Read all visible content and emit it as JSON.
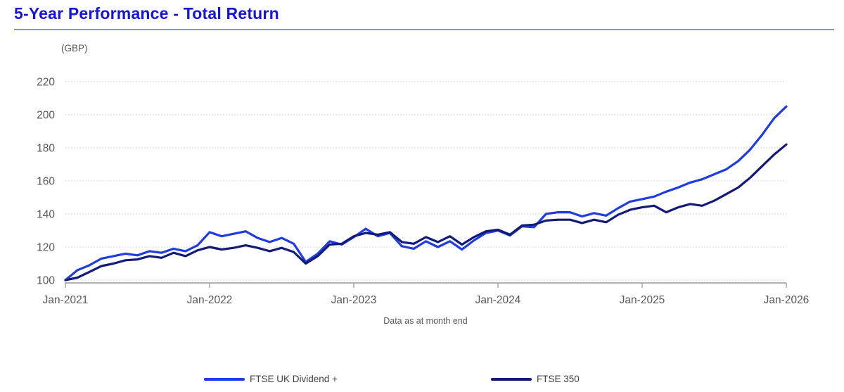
{
  "header": {
    "title": "5-Year Performance - Total Return"
  },
  "colors": {
    "title_blue": "#1414DC",
    "rule_blue": "#8C8CDC",
    "axis_gray": "#9A9A9A",
    "text_gray": "#595959",
    "grid_gray": "#C9C9C9",
    "legend_text": "#3F3F3F"
  },
  "chart_data": {
    "type": "line",
    "title": "5-Year Performance - Total Return",
    "unit_label": "(GBP)",
    "caption": "Data as at month end",
    "xlabel": "",
    "ylabel": "",
    "grid": true,
    "legend_position": "bottom",
    "x_axis": {
      "tick_labels": [
        "Jan-2021",
        "Jan-2022",
        "Jan-2023",
        "Jan-2024",
        "Jan-2025",
        "Jan-2026"
      ],
      "points": "monthly, month-end, Jan-2021 through Jan-2026"
    },
    "y_axis": {
      "ticks": [
        100,
        120,
        140,
        160,
        180,
        200,
        220
      ],
      "range": [
        100,
        220
      ]
    },
    "series": [
      {
        "name": "FTSE UK Dividend +",
        "color": "#1E3CE0",
        "values": [
          100,
          106,
          109,
          113,
          114.5,
          116,
          115,
          117.5,
          116.5,
          119,
          117.5,
          121,
          129,
          126.5,
          128,
          129.5,
          125.5,
          123,
          125.5,
          122,
          111,
          116,
          123.5,
          121.5,
          126,
          131,
          126.5,
          128.5,
          120.5,
          119,
          123.5,
          120,
          123.5,
          118.5,
          124,
          128.5,
          130,
          127,
          132.5,
          132,
          140,
          141,
          141,
          138.5,
          140.5,
          139,
          143.5,
          147.5,
          149,
          150.5,
          153.5,
          156,
          159,
          161,
          164,
          167,
          172,
          179,
          188,
          198,
          205
        ]
      },
      {
        "name": "FTSE 350",
        "color": "#131A78",
        "values": [
          100,
          101.5,
          105,
          108.5,
          110,
          112,
          112.5,
          114.5,
          113.5,
          116.5,
          114.5,
          118,
          120,
          118.5,
          119.5,
          121,
          119.5,
          117.5,
          119.5,
          117,
          110,
          114.5,
          121.5,
          122,
          126.5,
          128.5,
          127.5,
          129,
          123,
          122,
          126,
          123,
          126.5,
          121.5,
          126,
          129.5,
          130.5,
          127.5,
          133,
          133.5,
          136,
          136.5,
          136.5,
          134.5,
          136.5,
          135,
          139.5,
          142.5,
          144,
          145,
          141,
          144,
          146,
          145,
          148,
          152,
          156,
          162,
          169,
          176,
          182
        ]
      }
    ]
  }
}
